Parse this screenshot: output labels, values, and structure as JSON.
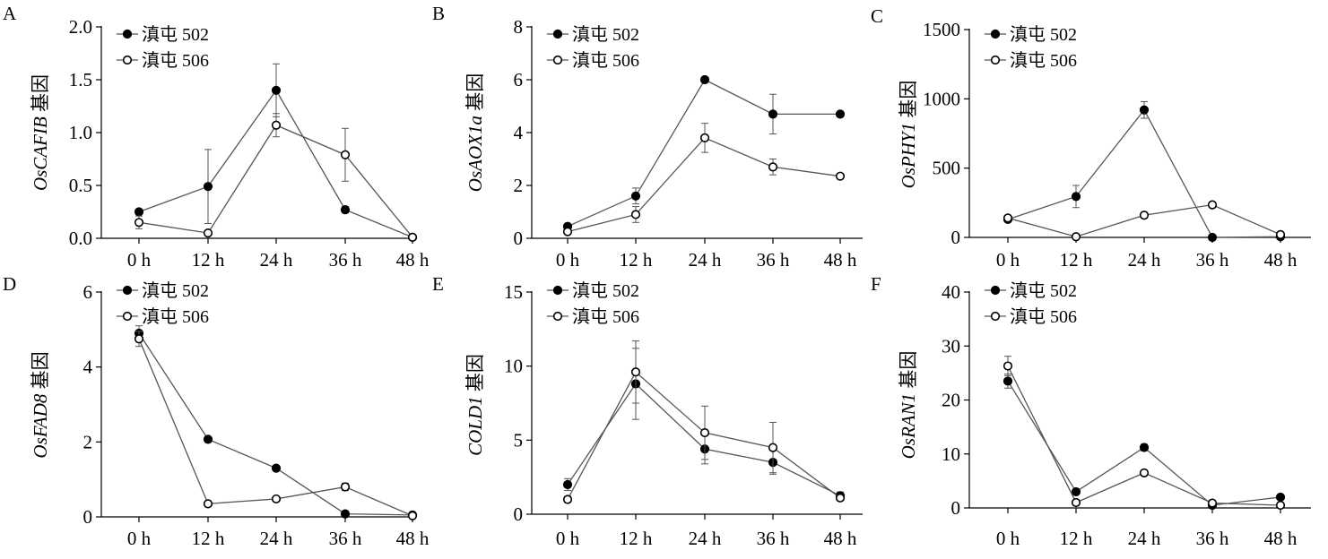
{
  "chart_data": [
    {
      "type": "line",
      "panel_label": "A",
      "categories": [
        "0 h",
        "12 h",
        "24 h",
        "36 h",
        "48 h"
      ],
      "ylabel": "OsCAFIB 基因",
      "ylabel_gene": "OsCAFIB",
      "ylabel_suffix": " 基因",
      "ylim": [
        0,
        2.0
      ],
      "yticks": [
        0,
        0.5,
        1.0,
        1.5,
        2.0
      ],
      "ytick_labels": [
        "0.0",
        "0.5",
        "1.0",
        "1.5",
        "2.0"
      ],
      "legend_position": "top-left",
      "series": [
        {
          "name": "滇屯 502",
          "marker": "filled",
          "values": [
            0.25,
            0.49,
            1.4,
            0.27,
            0.01
          ],
          "errors": [
            0.02,
            0.35,
            0.25,
            0.03,
            0.01
          ]
        },
        {
          "name": "滇屯 506",
          "marker": "open",
          "values": [
            0.15,
            0.05,
            1.07,
            0.79,
            0.01
          ],
          "errors": [
            0.06,
            0.02,
            0.11,
            0.25,
            0.01
          ]
        }
      ]
    },
    {
      "type": "line",
      "panel_label": "B",
      "categories": [
        "0 h",
        "12 h",
        "24 h",
        "36 h",
        "48 h"
      ],
      "ylabel": "OsAOX1a 基因",
      "ylabel_gene": "OsAOX1a",
      "ylabel_suffix": " 基因",
      "ylim": [
        0,
        8
      ],
      "yticks": [
        0,
        2,
        4,
        6,
        8
      ],
      "ytick_labels": [
        "0",
        "2",
        "4",
        "6",
        "8"
      ],
      "legend_position": "top-left",
      "series": [
        {
          "name": "滇屯 502",
          "marker": "filled",
          "values": [
            0.45,
            1.6,
            6.0,
            4.7,
            4.7
          ],
          "errors": [
            0.05,
            0.3,
            0.05,
            0.75,
            0.05
          ]
        },
        {
          "name": "滇屯 506",
          "marker": "open",
          "values": [
            0.25,
            0.9,
            3.8,
            2.7,
            2.35
          ],
          "errors": [
            0.05,
            0.3,
            0.55,
            0.3,
            0.1
          ]
        }
      ]
    },
    {
      "type": "line",
      "panel_label": "C",
      "categories": [
        "0 h",
        "12 h",
        "24 h",
        "36 h",
        "48 h"
      ],
      "ylabel": "OsPHY1 基因",
      "ylabel_gene": "OsPHY1",
      "ylabel_suffix": " 基因",
      "ylim": [
        0,
        1500
      ],
      "yticks": [
        0,
        500,
        1000,
        1500
      ],
      "ytick_labels": [
        "0",
        "500",
        "1000",
        "1500"
      ],
      "legend_position": "top-left",
      "series": [
        {
          "name": "滇屯 502",
          "marker": "filled",
          "values": [
            130,
            295,
            920,
            0,
            5
          ],
          "errors": [
            10,
            80,
            60,
            3,
            5
          ]
        },
        {
          "name": "滇屯 506",
          "marker": "open",
          "values": [
            140,
            5,
            160,
            235,
            20
          ],
          "errors": [
            10,
            5,
            20,
            20,
            10
          ]
        }
      ]
    },
    {
      "type": "line",
      "panel_label": "D",
      "categories": [
        "0 h",
        "12 h",
        "24 h",
        "36 h",
        "48 h"
      ],
      "ylabel": "OsFAD8 基因",
      "ylabel_gene": "OsFAD8",
      "ylabel_suffix": " 基因",
      "ylim": [
        0,
        6
      ],
      "yticks": [
        0,
        2,
        4,
        6
      ],
      "ytick_labels": [
        "0",
        "2",
        "4",
        "6"
      ],
      "legend_position": "top-left",
      "series": [
        {
          "name": "滇屯 502",
          "marker": "filled",
          "values": [
            4.9,
            2.07,
            1.3,
            0.08,
            0.05
          ],
          "errors": [
            0.2,
            0.03,
            0.03,
            0.03,
            0.02
          ]
        },
        {
          "name": "滇屯 506",
          "marker": "open",
          "values": [
            4.75,
            0.35,
            0.48,
            0.8,
            0.03
          ],
          "errors": [
            0.2,
            0.03,
            0.03,
            0.1,
            0.02
          ]
        }
      ]
    },
    {
      "type": "line",
      "panel_label": "E",
      "categories": [
        "0 h",
        "12 h",
        "24 h",
        "36 h",
        "48 h"
      ],
      "ylabel": "COLD1 基因",
      "ylabel_gene": "COLD1",
      "ylabel_suffix": " 基因",
      "ylim": [
        0,
        15
      ],
      "yticks": [
        0,
        5,
        10,
        15
      ],
      "ytick_labels": [
        "0",
        "5",
        "10",
        "15"
      ],
      "legend_position": "top-left",
      "series": [
        {
          "name": "滇屯 502",
          "marker": "filled",
          "values": [
            2.0,
            8.8,
            4.4,
            3.5,
            1.25
          ],
          "errors": [
            0.4,
            2.4,
            1.0,
            0.8,
            0.25
          ]
        },
        {
          "name": "滇屯 506",
          "marker": "open",
          "values": [
            1.0,
            9.6,
            5.5,
            4.5,
            1.1
          ],
          "errors": [
            0.2,
            2.1,
            1.8,
            1.7,
            0.2
          ]
        }
      ]
    },
    {
      "type": "line",
      "panel_label": "F",
      "categories": [
        "0 h",
        "12 h",
        "24 h",
        "36 h",
        "48 h"
      ],
      "ylabel": "OsRAN1 基因",
      "ylabel_gene": "OsRAN1",
      "ylabel_suffix": " 基因",
      "ylim": [
        0,
        40
      ],
      "yticks": [
        0,
        10,
        20,
        30,
        40
      ],
      "ytick_labels": [
        "0",
        "10",
        "20",
        "30",
        "40"
      ],
      "legend_position": "top-left",
      "series": [
        {
          "name": "滇屯 502",
          "marker": "filled",
          "values": [
            23.5,
            3.0,
            11.2,
            0.5,
            2.0
          ],
          "errors": [
            1.3,
            0.3,
            0.6,
            0.2,
            0.3
          ]
        },
        {
          "name": "滇屯 506",
          "marker": "open",
          "values": [
            26.3,
            1.0,
            6.5,
            0.9,
            0.5
          ],
          "errors": [
            1.8,
            0.2,
            0.4,
            0.3,
            0.2
          ]
        }
      ]
    }
  ]
}
